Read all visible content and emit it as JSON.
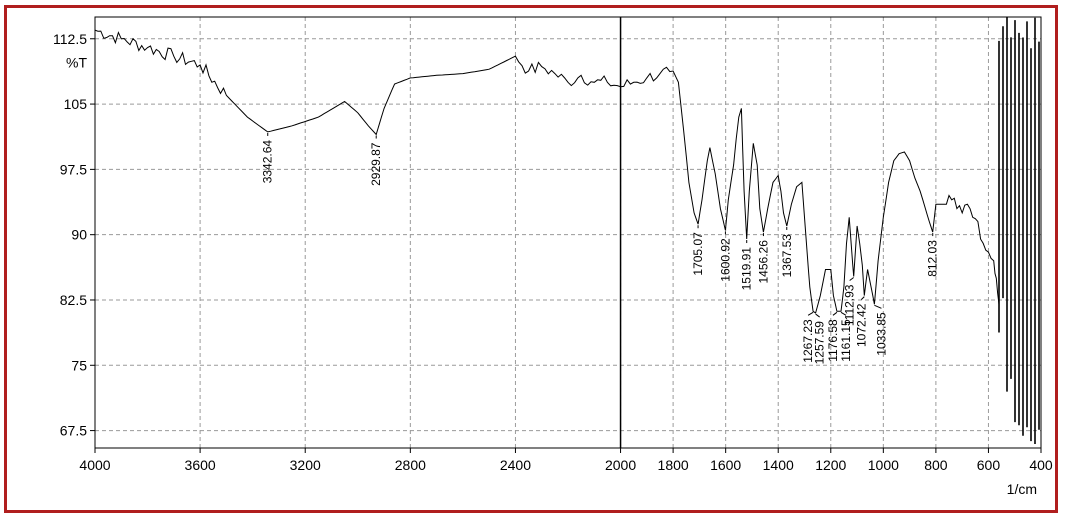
{
  "chart_data": {
    "type": "line",
    "title": "",
    "xlabel": "1/cm",
    "ylabel": "%T",
    "xlim": [
      4000,
      400
    ],
    "ylim": [
      65.5,
      115
    ],
    "x_ticks": [
      4000,
      3600,
      3200,
      2800,
      2400,
      2000,
      1800,
      1600,
      1400,
      1200,
      1000,
      800,
      600,
      400
    ],
    "y_ticks": [
      "67.5",
      "75",
      "82.5",
      "90",
      "97.5",
      "105",
      "112.5"
    ],
    "grid": true,
    "x": [
      4000,
      3900,
      3800,
      3700,
      3600,
      3500,
      3420,
      3342.64,
      3250,
      3150,
      3050,
      3000,
      2960,
      2929.87,
      2900,
      2860,
      2800,
      2700,
      2600,
      2500,
      2400,
      2350,
      2300,
      2250,
      2200,
      2150,
      2100,
      2050,
      2000,
      1950,
      1900,
      1850,
      1800,
      1780,
      1760,
      1740,
      1720,
      1705.07,
      1690,
      1670,
      1660,
      1640,
      1620,
      1600.92,
      1590,
      1570,
      1560,
      1550,
      1540,
      1530,
      1519.91,
      1510,
      1495,
      1480,
      1470,
      1456.26,
      1440,
      1420,
      1400,
      1390,
      1380,
      1367.53,
      1350,
      1330,
      1310,
      1300,
      1290,
      1280,
      1267.23,
      1257.59,
      1240,
      1220,
      1200,
      1190,
      1176.58,
      1161.15,
      1150,
      1140,
      1130,
      1120,
      1112.93,
      1100,
      1090,
      1080,
      1072.42,
      1060,
      1050,
      1040,
      1033.85,
      1020,
      1000,
      980,
      960,
      940,
      920,
      900,
      880,
      860,
      840,
      825,
      812.03,
      800,
      780,
      760,
      740,
      720,
      700,
      680,
      660,
      640,
      620,
      600,
      580,
      570,
      560
    ],
    "y": [
      113.5,
      112.5,
      111.5,
      110.5,
      109.5,
      106,
      103.5,
      101.8,
      102.5,
      103.5,
      105.3,
      104,
      102.5,
      101.5,
      104.5,
      107.3,
      108,
      108.3,
      108.5,
      109,
      110.5,
      108.8,
      109.3,
      108.5,
      107.5,
      108.3,
      107.5,
      107.5,
      107,
      107.5,
      108,
      108.5,
      108.8,
      107.5,
      102,
      96,
      92.5,
      91.2,
      94,
      98.5,
      100,
      97,
      93,
      90.5,
      94,
      98,
      101,
      103.5,
      104.5,
      95,
      89.5,
      95,
      100.5,
      98,
      93,
      90.3,
      93,
      96,
      96.8,
      95,
      92.5,
      91,
      93.5,
      95.5,
      96,
      92,
      88,
      84,
      81.2,
      81,
      83,
      86,
      86,
      83,
      81.2,
      81.2,
      84,
      89,
      92,
      88,
      85.2,
      91,
      89,
      86.5,
      83,
      86,
      84.5,
      83,
      82,
      87,
      92,
      96,
      98.5,
      99.3,
      99.5,
      98.5,
      96.5,
      95,
      93,
      91.5,
      90.3,
      93.5,
      93.5,
      93.5,
      94,
      93,
      92.5,
      93.5,
      92,
      91.5,
      89,
      88,
      87,
      85,
      82
    ],
    "noise_region": {
      "x_from": 560,
      "x_to": 400,
      "y_low": 65.5,
      "y_high": 115
    },
    "peaks": [
      {
        "label": "3342.64",
        "x": 3342.64,
        "y": 101.8
      },
      {
        "label": "2929.87",
        "x": 2929.87,
        "y": 101.5
      },
      {
        "label": "1705.07",
        "x": 1705.07,
        "y": 91.2
      },
      {
        "label": "1600.92",
        "x": 1600.92,
        "y": 90.5
      },
      {
        "label": "1519.91",
        "x": 1519.91,
        "y": 89.5
      },
      {
        "label": "1456.26",
        "x": 1456.26,
        "y": 90.3
      },
      {
        "label": "1367.53",
        "x": 1367.53,
        "y": 91
      },
      {
        "label": "1267.23",
        "x": 1267.23,
        "y": 81.2
      },
      {
        "label": "1257.59",
        "x": 1257.59,
        "y": 81
      },
      {
        "label": "1176.58",
        "x": 1176.58,
        "y": 81.2
      },
      {
        "label": "1161.15",
        "x": 1161.15,
        "y": 81.2
      },
      {
        "label": "1112.93",
        "x": 1112.93,
        "y": 85.2
      },
      {
        "label": "1072.42",
        "x": 1072.42,
        "y": 83
      },
      {
        "label": "1033.85",
        "x": 1033.85,
        "y": 82
      },
      {
        "label": "812.03",
        "x": 812.03,
        "y": 90.3
      }
    ],
    "vertical_marker_x": 2000
  },
  "colors": {
    "frame": "#b01e1e",
    "line": "#000000",
    "grid": "#9a9a9a"
  }
}
